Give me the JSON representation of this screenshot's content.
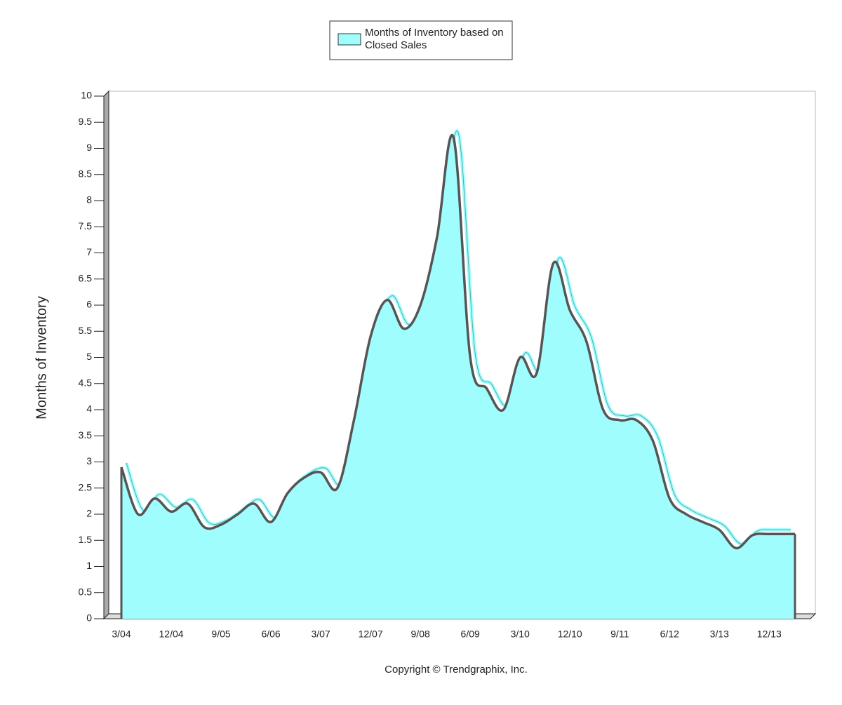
{
  "chart_data": {
    "type": "area",
    "legend_title": null,
    "ylabel": "Months of Inventory",
    "copyright": "Copyright © Trendgraphix, Inc.",
    "categories": [
      "3/04",
      null,
      null,
      "12/04",
      null,
      null,
      "9/05",
      null,
      null,
      "6/06",
      null,
      null,
      "3/07",
      null,
      null,
      "12/07",
      null,
      null,
      "9/08",
      null,
      null,
      "6/09",
      null,
      null,
      "3/10",
      null,
      null,
      "12/10",
      null,
      null,
      "9/11",
      null,
      null,
      "6/12",
      null,
      null,
      "3/13",
      null,
      null,
      "12/13",
      null
    ],
    "series": [
      {
        "name": "Months of Inventory based on Closed Sales",
        "color": "#a0fdfe",
        "values": [
          2.9,
          2.0,
          2.3,
          2.05,
          2.2,
          1.75,
          1.8,
          2.0,
          2.2,
          1.85,
          2.4,
          2.7,
          2.8,
          2.5,
          3.8,
          5.4,
          6.1,
          5.55,
          6.0,
          7.3,
          9.2,
          5.0,
          4.4,
          4.0,
          5.0,
          4.7,
          6.8,
          5.9,
          5.3,
          4.0,
          3.8,
          3.8,
          3.4,
          2.3,
          2.0,
          1.85,
          1.7,
          1.35,
          1.6,
          1.62,
          1.62
        ]
      }
    ],
    "ylim": [
      0,
      10
    ],
    "yticks": [
      0,
      0.5,
      1,
      1.5,
      2,
      2.5,
      3,
      3.5,
      4,
      4.5,
      5,
      5.5,
      6,
      6.5,
      7,
      7.5,
      8,
      8.5,
      9,
      9.5,
      10
    ],
    "legend": "top"
  }
}
